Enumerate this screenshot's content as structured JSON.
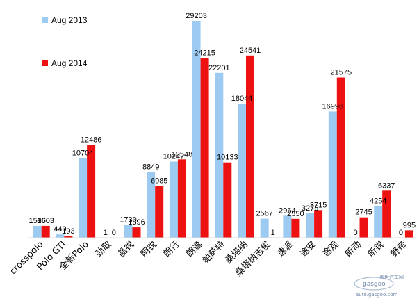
{
  "chart_data": {
    "type": "bar",
    "categories": [
      "crosspolo",
      "Polo GTI",
      "全新Polo",
      "劲取",
      "晶锐",
      "明锐",
      "朗行",
      "朗逸",
      "帕萨特",
      "桑塔纳",
      "桑塔纳志俊",
      "速派",
      "途安",
      "途观",
      "昕动",
      "昕锐",
      "野帝"
    ],
    "series": [
      {
        "name": "Aug 2013",
        "values": [
          1596,
          449,
          10704,
          1,
          1730,
          8849,
          10247,
          29203,
          22201,
          18044,
          2567,
          2964,
          3276,
          16996,
          0,
          4254,
          0
        ]
      },
      {
        "name": "Aug 2014",
        "values": [
          1603,
          193,
          12486,
          0,
          1396,
          6985,
          10548,
          24215,
          10133,
          24541,
          1,
          2550,
          3715,
          21575,
          2745,
          6337,
          995
        ]
      }
    ],
    "colors": {
      "Aug 2013": "#9ccaf0",
      "Aug 2014": "#ee1111"
    },
    "ylim": [
      0,
      30000
    ],
    "grid": false,
    "legend_position": "top-left",
    "watermark": {
      "line1": "盖世汽车网",
      "line2": "auto.gasgoo.com",
      "logo_text": "gasgoo"
    }
  }
}
